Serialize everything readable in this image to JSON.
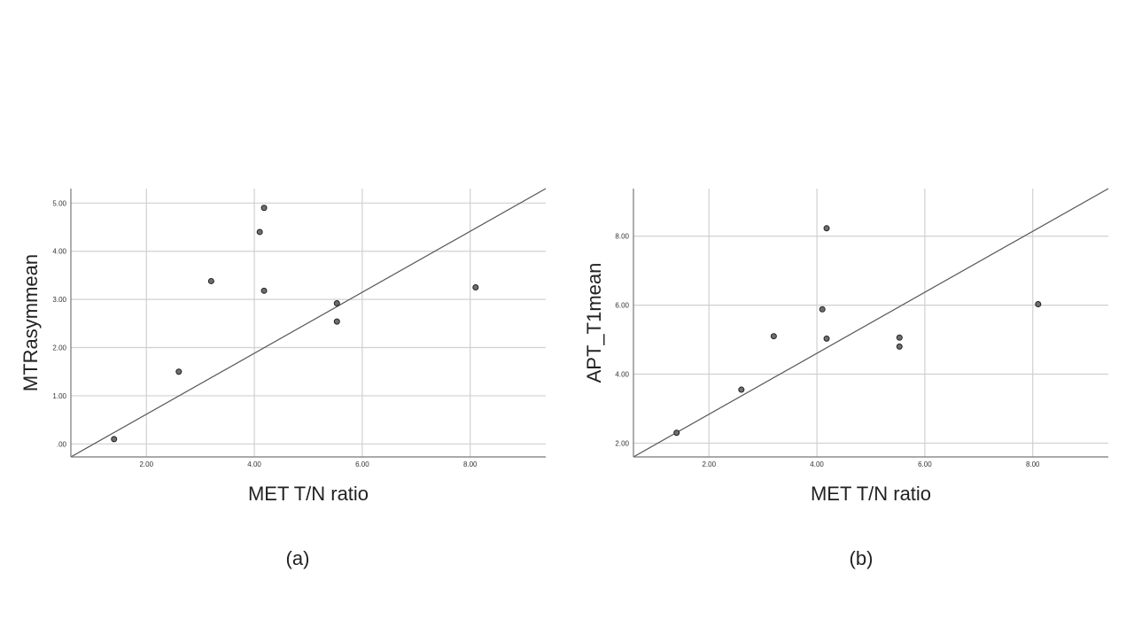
{
  "chart_data": [
    {
      "type": "scatter",
      "panel_label": "(a)",
      "xlabel": "MET T/N ratio",
      "ylabel": "MTRasymmean",
      "xlim": [
        0.6,
        9.4
      ],
      "ylim": [
        -0.27,
        5.3
      ],
      "xticks": [
        2,
        4,
        6,
        8
      ],
      "xtick_labels": [
        "2.00",
        "4.00",
        "6.00",
        "8.00"
      ],
      "yticks": [
        0,
        1,
        2,
        3,
        4,
        5
      ],
      "ytick_labels": [
        ".00",
        "1.00",
        "2.00",
        "3.00",
        "4.00",
        "5.00"
      ],
      "grid": true,
      "points": [
        {
          "x": 1.4,
          "y": 0.1
        },
        {
          "x": 2.6,
          "y": 1.5
        },
        {
          "x": 3.2,
          "y": 3.38
        },
        {
          "x": 4.1,
          "y": 4.4
        },
        {
          "x": 4.18,
          "y": 4.9
        },
        {
          "x": 4.18,
          "y": 3.18
        },
        {
          "x": 5.53,
          "y": 2.92
        },
        {
          "x": 5.53,
          "y": 2.54
        },
        {
          "x": 8.1,
          "y": 3.25
        }
      ],
      "reference_line": {
        "x": [
          0.6,
          9.4
        ],
        "y": [
          -0.27,
          5.3
        ]
      }
    },
    {
      "type": "scatter",
      "panel_label": "(b)",
      "xlabel": "MET T/N ratio",
      "ylabel": "APT_T1mean",
      "xlim": [
        0.6,
        9.4
      ],
      "ylim": [
        1.6,
        9.38
      ],
      "xticks": [
        2,
        4,
        6,
        8
      ],
      "xtick_labels": [
        "2.00",
        "4.00",
        "6.00",
        "8.00"
      ],
      "yticks": [
        2,
        4,
        6,
        8
      ],
      "ytick_labels": [
        "2.00",
        "4.00",
        "6.00",
        "8.00"
      ],
      "grid": true,
      "points": [
        {
          "x": 1.4,
          "y": 2.3
        },
        {
          "x": 2.6,
          "y": 3.55
        },
        {
          "x": 3.2,
          "y": 5.1
        },
        {
          "x": 4.1,
          "y": 5.88
        },
        {
          "x": 4.18,
          "y": 8.23
        },
        {
          "x": 4.18,
          "y": 5.03
        },
        {
          "x": 5.53,
          "y": 5.06
        },
        {
          "x": 5.53,
          "y": 4.8
        },
        {
          "x": 8.1,
          "y": 6.03
        }
      ],
      "reference_line": {
        "x": [
          0.6,
          9.4
        ],
        "y": [
          1.6,
          9.38
        ]
      }
    }
  ]
}
